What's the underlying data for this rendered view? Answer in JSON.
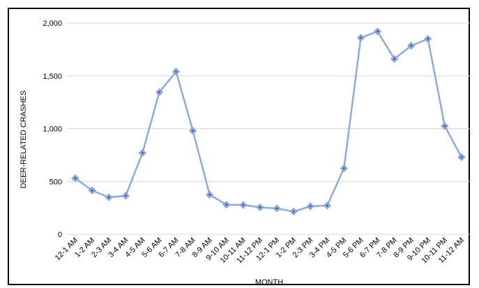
{
  "chart_data": {
    "type": "line",
    "title": "",
    "xlabel": "MONTH",
    "ylabel": "DEER-RELATED CRASHES",
    "categories": [
      "12-1 AM",
      "1-2 AM",
      "2-3 AM",
      "3-4 AM",
      "4-5 AM",
      "5-6 AM",
      "6-7 AM",
      "7-8 AM",
      "8-9 AM",
      "9-10 AM",
      "10-11 AM",
      "11-12 PM",
      "12-1 PM",
      "1-2 PM",
      "2-3 PM",
      "3-4 PM",
      "4-5 PM",
      "5-6 PM",
      "6-7 PM",
      "7-8 PM",
      "8-9 PM",
      "9-10 PM",
      "10-11 PM",
      "11-12 AM"
    ],
    "series": [
      {
        "name": "",
        "values": [
          530,
          415,
          350,
          365,
          770,
          1345,
          1540,
          980,
          375,
          280,
          278,
          255,
          245,
          215,
          265,
          272,
          625,
          1860,
          1920,
          1660,
          1785,
          1850,
          1025,
          730
        ]
      }
    ],
    "ylim": [
      0,
      2000
    ],
    "yticks": [
      0,
      500,
      1000,
      1500,
      2000
    ],
    "ytick_labels": [
      "0",
      "500",
      "1,000",
      "1,500",
      "2,000"
    ],
    "grid": true,
    "line_color": "#8EA9DB",
    "marker_color": "#8EA9DB",
    "marker_dot_color": "#1F3864",
    "grid_color": "#D9D9D9"
  }
}
